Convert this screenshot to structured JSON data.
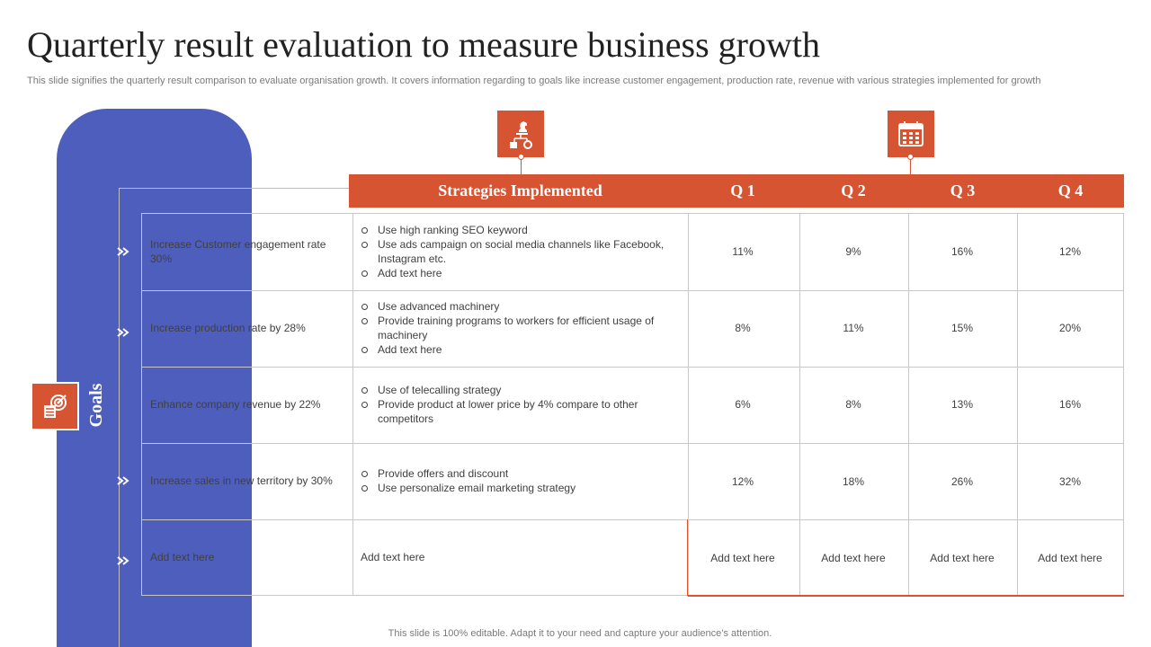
{
  "slide": {
    "title": "Quarterly result evaluation to measure business growth",
    "subtitle": "This slide signifies the quarterly result comparison to evaluate organisation growth. It covers information regarding to goals like increase customer engagement, production rate, revenue with various strategies implemented for growth",
    "footer": "This slide is 100% editable. Adapt it to your need and capture your audience’s attention."
  },
  "sidebar": {
    "label": "Goals",
    "icon": "target-checklist-icon"
  },
  "icons": {
    "strategy": "chess-strategy-icon",
    "calendar": "calendar-icon"
  },
  "colors": {
    "accent": "#d65432",
    "sidebar": "#4e5ebc"
  },
  "table": {
    "headers": {
      "strategies": "Strategies Implemented",
      "q1": "Q 1",
      "q2": "Q 2",
      "q3": "Q 3",
      "q4": "Q 4"
    },
    "rows": [
      {
        "goal": "Increase Customer engagement rate 30%",
        "strategies": [
          "Use high ranking SEO keyword",
          "Use ads campaign on social media channels like Facebook, Instagram etc.",
          "Add text here"
        ],
        "q1": "11%",
        "q2": "9%",
        "q3": "16%",
        "q4": "12%"
      },
      {
        "goal": "Increase production rate by 28%",
        "strategies": [
          "Use advanced machinery",
          "Provide training programs to workers for efficient usage of machinery",
          "Add text here"
        ],
        "q1": "8%",
        "q2": "11%",
        "q3": "15%",
        "q4": "20%"
      },
      {
        "goal": "Enhance company revenue  by 22%",
        "strategies": [
          "Use of telecalling strategy",
          "Provide product at lower price by 4% compare to other competitors"
        ],
        "q1": "6%",
        "q2": "8%",
        "q3": "13%",
        "q4": "16%"
      },
      {
        "goal": "Increase sales in new territory by 30%",
        "strategies": [
          "Provide offers and discount",
          "Use personalize email marketing strategy"
        ],
        "q1": "12%",
        "q2": "18%",
        "q3": "26%",
        "q4": "32%"
      },
      {
        "goal": "Add text here",
        "strategy_text": "Add text here",
        "q1": "Add text here",
        "q2": "Add text here",
        "q3": "Add text here",
        "q4": "Add text here"
      }
    ]
  }
}
